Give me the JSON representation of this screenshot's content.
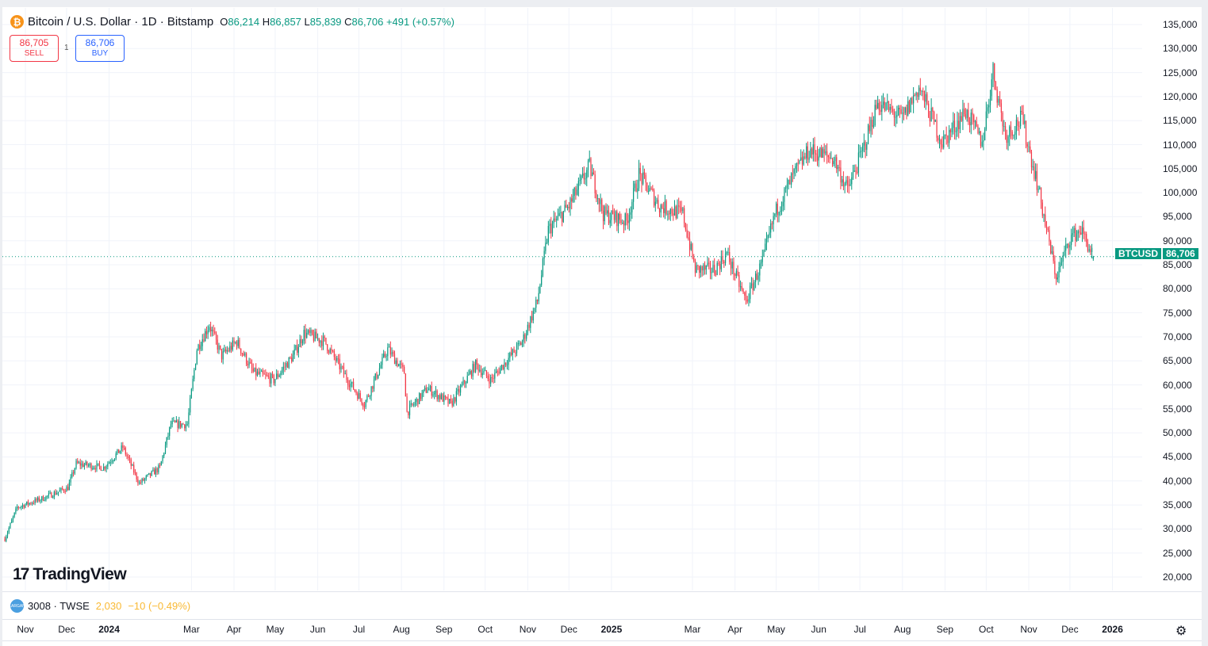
{
  "header": {
    "symbol_name": "Bitcoin / U.S. Dollar · 1D · Bitstamp",
    "icon": "bitcoin-icon",
    "open_label": "O",
    "open": "86,214",
    "high_label": "H",
    "high": "86,857",
    "low_label": "L",
    "low": "85,839",
    "close_label": "C",
    "close": "86,706",
    "change": "+491 (+0.57%)"
  },
  "trade": {
    "sell_price": "86,705",
    "sell_label": "SELL",
    "quantity": "1",
    "buy_price": "86,706",
    "buy_label": "BUY"
  },
  "last_price": {
    "ticker": "BTCUSD",
    "value": "86,706"
  },
  "logo": {
    "mark": "17",
    "text": "TradingView"
  },
  "lower_pane": {
    "icon": "largan-logo-icon",
    "icon_text": "LARGAN",
    "symbol": "3008 · TWSE",
    "value": "2,030",
    "change": "−10 (−0.49%)"
  },
  "colors": {
    "up": "#089981",
    "down": "#f23645",
    "buy": "#2962ff",
    "lower_pane_value": "#f9b934"
  },
  "chart_data": {
    "type": "candlestick",
    "interval": "1D",
    "y_scale": "linear",
    "ylim": [
      20000,
      135000
    ],
    "grid": true,
    "y_ticks": [
      "135,000",
      "130,000",
      "125,000",
      "120,000",
      "115,000",
      "110,000",
      "105,000",
      "100,000",
      "95,000",
      "90,000",
      "85,000",
      "80,000",
      "75,000",
      "70,000",
      "65,000",
      "60,000",
      "55,000",
      "50,000",
      "45,000",
      "40,000",
      "35,000",
      "30,000",
      "25,000",
      "20,000"
    ],
    "x_ticks": [
      {
        "label": "Nov",
        "date": "2023-11-01"
      },
      {
        "label": "Dec",
        "date": "2023-12-01"
      },
      {
        "label": "2024",
        "date": "2024-01-01",
        "year": true
      },
      {
        "label": "Mar",
        "date": "2024-03-01"
      },
      {
        "label": "Apr",
        "date": "2024-04-01"
      },
      {
        "label": "May",
        "date": "2024-05-01"
      },
      {
        "label": "Jun",
        "date": "2024-06-01"
      },
      {
        "label": "Jul",
        "date": "2024-07-01"
      },
      {
        "label": "Aug",
        "date": "2024-08-01"
      },
      {
        "label": "Sep",
        "date": "2024-09-01"
      },
      {
        "label": "Oct",
        "date": "2024-10-01"
      },
      {
        "label": "Nov",
        "date": "2024-11-01"
      },
      {
        "label": "Dec",
        "date": "2024-12-01"
      },
      {
        "label": "2025",
        "date": "2025-01-01",
        "year": true
      },
      {
        "label": "Mar",
        "date": "2025-03-01"
      },
      {
        "label": "Apr",
        "date": "2025-04-01"
      },
      {
        "label": "May",
        "date": "2025-05-01"
      },
      {
        "label": "Jun",
        "date": "2025-06-01"
      },
      {
        "label": "Jul",
        "date": "2025-07-01"
      },
      {
        "label": "Aug",
        "date": "2025-08-01"
      },
      {
        "label": "Sep",
        "date": "2025-09-01"
      },
      {
        "label": "Oct",
        "date": "2025-10-01"
      },
      {
        "label": "Nov",
        "date": "2025-11-01"
      },
      {
        "label": "Dec",
        "date": "2025-12-01"
      },
      {
        "label": "2026",
        "date": "2026-01-01",
        "year": true
      }
    ],
    "series": [
      {
        "close_path": [
          [
            "2023-10-17",
            28000
          ],
          [
            "2023-10-26",
            34500
          ],
          [
            "2023-11-12",
            36200
          ],
          [
            "2023-12-02",
            38600
          ],
          [
            "2023-12-08",
            43600
          ],
          [
            "2023-12-28",
            42800
          ],
          [
            "2024-01-11",
            47000
          ],
          [
            "2024-01-23",
            39500
          ],
          [
            "2024-02-07",
            42800
          ],
          [
            "2024-02-15",
            51800
          ],
          [
            "2024-02-27",
            51800
          ],
          [
            "2024-03-05",
            67500
          ],
          [
            "2024-03-14",
            72500
          ],
          [
            "2024-03-23",
            66000
          ],
          [
            "2024-04-03",
            69000
          ],
          [
            "2024-04-15",
            62600
          ],
          [
            "2024-04-30",
            61000
          ],
          [
            "2024-05-14",
            66000
          ],
          [
            "2024-05-22",
            70800
          ],
          [
            "2024-06-06",
            69000
          ],
          [
            "2024-06-23",
            61000
          ],
          [
            "2024-07-05",
            56000
          ],
          [
            "2024-07-22",
            67500
          ],
          [
            "2024-08-03",
            62600
          ],
          [
            "2024-08-05",
            54300
          ],
          [
            "2024-08-20",
            59300
          ],
          [
            "2024-09-06",
            56000
          ],
          [
            "2024-09-24",
            64200
          ],
          [
            "2024-10-05",
            61000
          ],
          [
            "2024-10-28",
            69000
          ],
          [
            "2024-11-08",
            77400
          ],
          [
            "2024-11-16",
            92300
          ],
          [
            "2024-12-01",
            97200
          ],
          [
            "2024-12-16",
            105500
          ],
          [
            "2024-12-26",
            95600
          ],
          [
            "2025-01-12",
            94000
          ],
          [
            "2025-01-21",
            103800
          ],
          [
            "2025-02-05",
            97200
          ],
          [
            "2025-02-22",
            95600
          ],
          [
            "2025-03-03",
            84000
          ],
          [
            "2025-03-17",
            84000
          ],
          [
            "2025-03-26",
            87300
          ],
          [
            "2025-04-09",
            77400
          ],
          [
            "2025-04-21",
            85700
          ],
          [
            "2025-04-30",
            95600
          ],
          [
            "2025-05-14",
            103800
          ],
          [
            "2025-05-25",
            108800
          ],
          [
            "2025-06-12",
            107100
          ],
          [
            "2025-06-22",
            100500
          ],
          [
            "2025-07-03",
            108800
          ],
          [
            "2025-07-14",
            118700
          ],
          [
            "2025-08-01",
            115400
          ],
          [
            "2025-08-13",
            122000
          ],
          [
            "2025-08-30",
            110400
          ],
          [
            "2025-09-16",
            117000
          ],
          [
            "2025-09-28",
            110400
          ],
          [
            "2025-10-06",
            125300
          ],
          [
            "2025-10-15",
            112000
          ],
          [
            "2025-10-27",
            115400
          ],
          [
            "2025-11-07",
            102200
          ],
          [
            "2025-11-21",
            82400
          ],
          [
            "2025-12-01",
            90600
          ],
          [
            "2025-12-09",
            92300
          ],
          [
            "2025-12-18",
            86706
          ]
        ],
        "last_bar": {
          "open": 86214,
          "high": 86857,
          "low": 85839,
          "close": 86706
        }
      }
    ]
  }
}
